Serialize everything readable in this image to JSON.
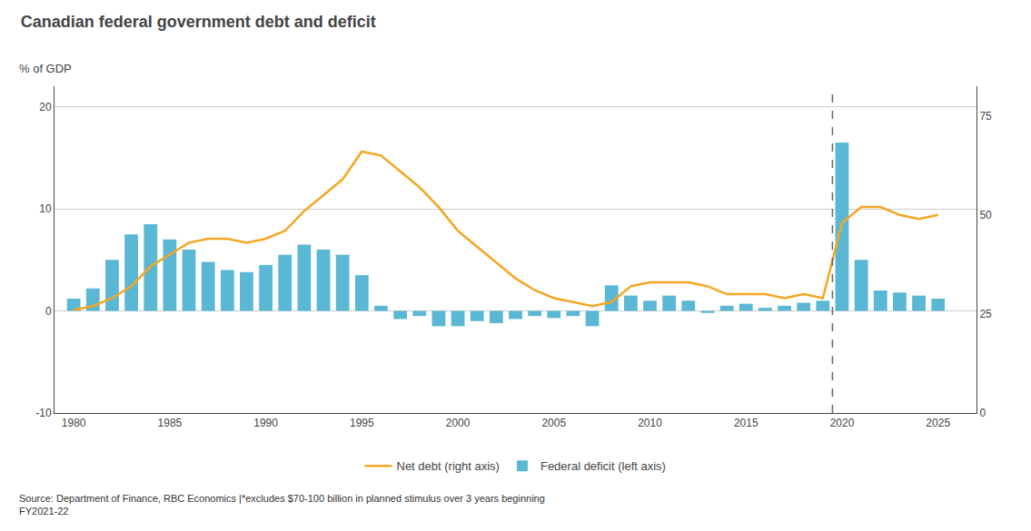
{
  "chart_data": {
    "type": "bar",
    "title": "Canadian federal government debt and deficit",
    "subtitle": "% of GDP",
    "annotations": [
      "Source: Department of Finance, RBC Economics |*excludes $70-100 billion in planned stimulus over 3 years beginning\nFY2021-22"
    ],
    "x": [
      1980,
      1981,
      1982,
      1983,
      1984,
      1985,
      1986,
      1987,
      1988,
      1989,
      1990,
      1991,
      1992,
      1993,
      1994,
      1995,
      1996,
      1997,
      1998,
      1999,
      2000,
      2001,
      2002,
      2003,
      2004,
      2005,
      2006,
      2007,
      2008,
      2009,
      2010,
      2011,
      2012,
      2013,
      2014,
      2015,
      2016,
      2017,
      2018,
      2019,
      2020,
      2021,
      2022,
      2023,
      2024,
      2025
    ],
    "xlim": [
      1979,
      2027
    ],
    "xticks": [
      1980,
      1985,
      1990,
      1995,
      2000,
      2005,
      2010,
      2015,
      2020,
      2025
    ],
    "ylim": [
      -10,
      22
    ],
    "yticks": [
      -10,
      0,
      10,
      20
    ],
    "y2lim": [
      0,
      82.5
    ],
    "y2ticks": [
      0,
      25,
      50,
      75
    ],
    "grid": true,
    "legend": "bottom",
    "reference_lines": [
      {
        "x": 2019.5,
        "line_style": "dashed"
      }
    ],
    "series": [
      {
        "name": "Federal deficit (left axis)",
        "type": "bar",
        "color": "#5BB8D4",
        "values": [
          1.2,
          2.2,
          5.0,
          7.5,
          8.5,
          7.0,
          6.0,
          4.8,
          4.0,
          3.8,
          4.5,
          5.5,
          6.5,
          6.0,
          5.5,
          3.5,
          0.5,
          -0.8,
          -0.5,
          -1.5,
          -1.5,
          -1.0,
          -1.2,
          -0.8,
          -0.5,
          -0.7,
          -0.5,
          -1.5,
          2.5,
          1.5,
          1.0,
          1.5,
          1.0,
          -0.2,
          0.5,
          0.7,
          0.3,
          0.5,
          0.8,
          1.0,
          16.5,
          5.0,
          2.0,
          1.8,
          1.5,
          1.2
        ]
      },
      {
        "name": "Net debt (right axis)",
        "type": "line",
        "color": "#F5A623",
        "axis": "y2",
        "values": [
          26,
          27,
          29,
          32,
          37,
          40,
          43,
          44,
          44,
          43,
          44,
          46,
          51,
          55,
          59,
          66,
          65,
          61,
          57,
          52,
          46,
          42,
          38,
          34,
          31,
          29,
          28,
          27,
          28,
          32,
          33,
          33,
          33,
          32,
          30,
          30,
          30,
          29,
          30,
          29,
          48,
          52,
          52,
          50,
          49,
          50
        ]
      }
    ]
  }
}
